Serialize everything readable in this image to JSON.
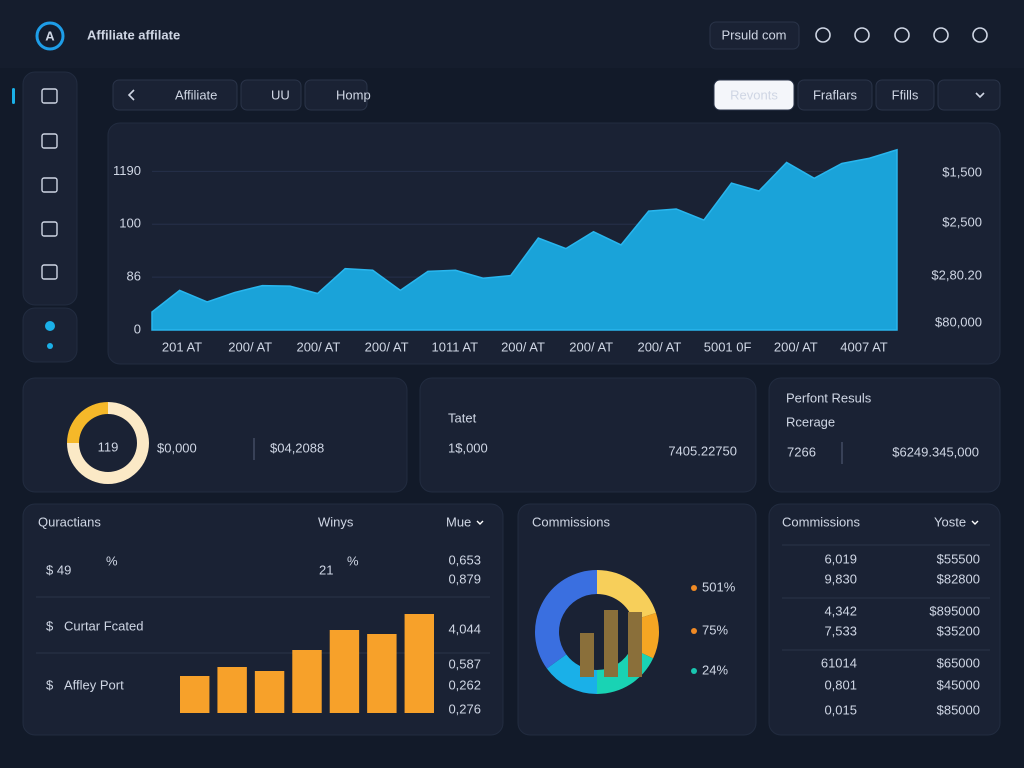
{
  "header": {
    "logo": "A",
    "title": "Affiliate affilate",
    "search": "Prsuld com"
  },
  "nav": {
    "tabs": [
      "Affiliate",
      "UU",
      "Homp"
    ],
    "buttons": [
      "Revonts",
      "Fraflars",
      "Ffills"
    ]
  },
  "trend_chart": {
    "type": "area",
    "color": "#1aa3d9",
    "values": [
      0.34,
      0.75,
      0.53,
      0.71,
      0.84,
      0.83,
      0.69,
      1.16,
      1.13,
      0.75,
      1.11,
      1.13,
      0.98,
      1.03,
      1.74,
      1.54,
      1.86,
      1.61,
      2.25,
      2.29,
      2.08,
      2.78,
      2.63,
      3.17,
      2.87,
      3.15,
      3.25,
      3.41
    ],
    "ylim": [
      0,
      3.5
    ],
    "yticks": [
      {
        "value": 0,
        "label": "0"
      },
      {
        "value": 1,
        "label": "86"
      },
      {
        "value": 2,
        "label": "100"
      },
      {
        "value": 3,
        "label": "1190"
      }
    ],
    "right_labels": [
      "$1,500",
      "$2,500",
      "$2,80.20",
      "$80,000"
    ],
    "x_labels": [
      "201 AT",
      "200/ AT",
      "200/ AT",
      "200/ AT",
      "1011 AT",
      "200/ AT",
      "200/ AT",
      "200/ AT",
      "5001 0F",
      "200/ AT",
      "4007 AT"
    ]
  },
  "stats": {
    "donut": {
      "label": "119",
      "values": [
        75,
        25
      ],
      "colors": [
        "#fbe9c6",
        "#f5b829"
      ]
    },
    "card1": [
      "$0,000",
      "$04,2088"
    ],
    "card2": {
      "title": "Tatet",
      "value": "1$,000",
      "secondary": "7405.22750"
    },
    "card3": {
      "title": "Perfont Resuls",
      "subtitle": "Rcerage",
      "value": "7266",
      "secondary": "$6249.345,000"
    }
  },
  "quractians": {
    "title": "Quractians",
    "column": "Winys",
    "dropdown": "Mue",
    "kpis": [
      {
        "value": "$ 49",
        "unit": "%"
      },
      {
        "value": "21",
        "unit": "%"
      }
    ],
    "rows": [
      {
        "icon": "$",
        "label": "Curtar Fcated"
      },
      {
        "icon": "$",
        "label": "Affley Port"
      }
    ],
    "side_values": [
      "0,653",
      "0,879",
      "4,044",
      "0,587",
      "0,262",
      "0,276"
    ],
    "bars": {
      "type": "bar",
      "color": "#f7a12a",
      "values": [
        37,
        46,
        42,
        63,
        83,
        79,
        99
      ],
      "ylim": [
        0,
        100
      ]
    }
  },
  "commissions_chart": {
    "title": "Commissions",
    "type": "pie",
    "values": [
      20,
      12,
      18,
      15,
      35
    ],
    "colors": [
      "#f7cf5a",
      "#f5a623",
      "#19d3b4",
      "#1ab0e8",
      "#3a6fe0"
    ],
    "inner_bars": {
      "values": [
        44,
        67,
        65
      ],
      "ylim": [
        0,
        70
      ],
      "color": "#8a6f3a"
    },
    "legend": [
      {
        "label": "501%",
        "color": "#f08a24"
      },
      {
        "label": "75%",
        "color": "#f08a24"
      },
      {
        "label": "24%",
        "color": "#19c6b0"
      }
    ]
  },
  "commissions_table": {
    "title": "Commissions",
    "dropdown": "Yoste",
    "rows": [
      [
        "6,019",
        "$55500"
      ],
      [
        "9,830",
        "$82800"
      ],
      [
        "4,342",
        "$895000"
      ],
      [
        "7,533",
        "$35200"
      ],
      [
        "61014",
        "$65000"
      ],
      [
        "0,801",
        "$45000"
      ],
      [
        "0,015",
        "$85000"
      ]
    ]
  }
}
